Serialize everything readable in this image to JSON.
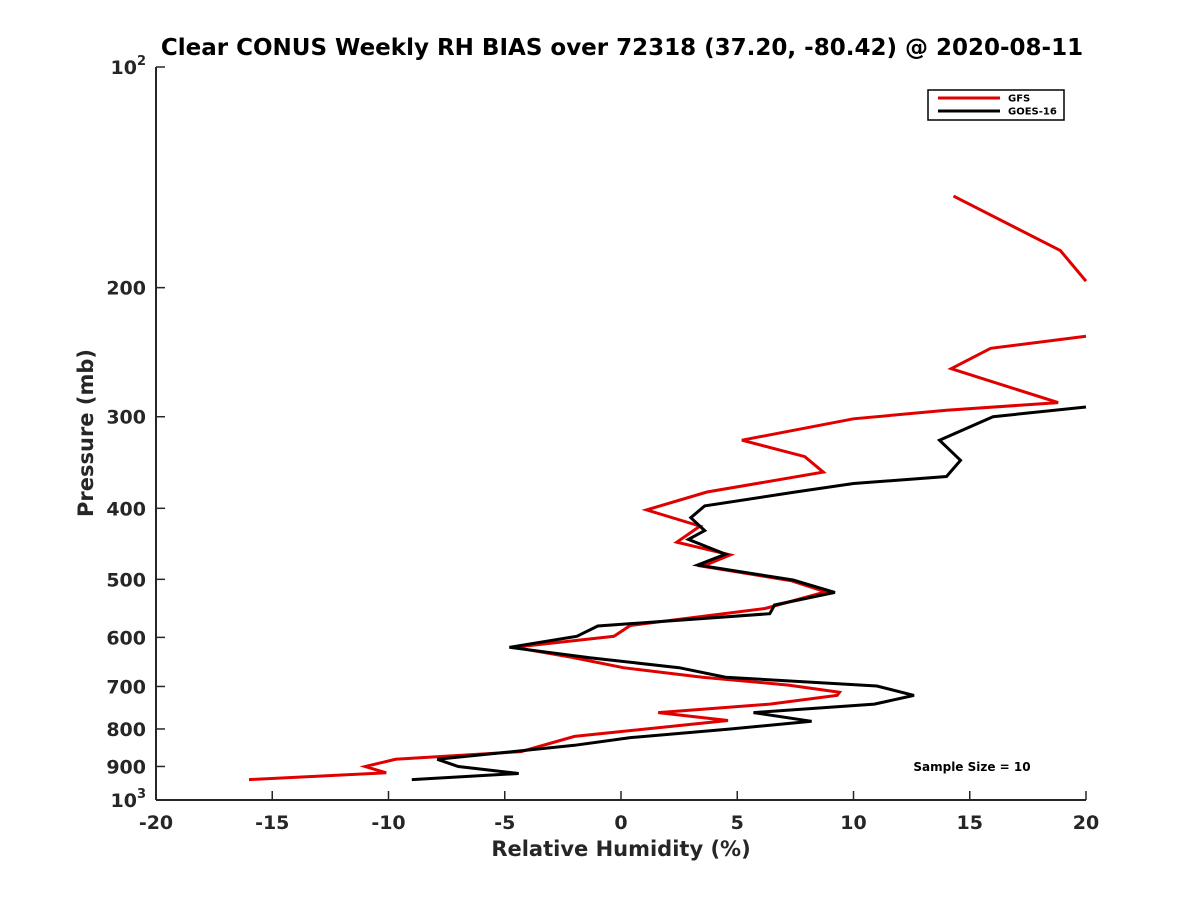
{
  "chart_data": {
    "type": "line",
    "title": "Clear CONUS Weekly RH BIAS over 72318 (37.20, -80.42) @ 2020-08-11",
    "xlabel": "Relative Humidity (%)",
    "ylabel": "Pressure (mb)",
    "xlim": [
      -20,
      20
    ],
    "ylim": [
      100,
      1000
    ],
    "y_scale": "log",
    "y_reversed": true,
    "grid": false,
    "legend_position": "top-right",
    "x_ticks": [
      "-20",
      "-15",
      "-10",
      "-5",
      "0",
      "5",
      "10",
      "15",
      "20"
    ],
    "y_ticks": [
      {
        "value": 100,
        "base": "10",
        "exp": "2"
      },
      {
        "value": 200,
        "label": "200"
      },
      {
        "value": 300,
        "label": "300"
      },
      {
        "value": 400,
        "label": "400"
      },
      {
        "value": 500,
        "label": "500"
      },
      {
        "value": 600,
        "label": "600"
      },
      {
        "value": 700,
        "label": "700"
      },
      {
        "value": 800,
        "label": "800"
      },
      {
        "value": 900,
        "label": "900"
      },
      {
        "value": 1000,
        "base": "10",
        "exp": "3"
      }
    ],
    "series": [
      {
        "name": "GFS",
        "color": "#e00000",
        "points": [
          [
            14.3,
            150
          ],
          [
            18.9,
            178
          ],
          [
            20.0,
            196
          ],
          null,
          [
            20.0,
            233
          ],
          [
            15.9,
            242
          ],
          [
            14.2,
            258
          ],
          [
            18.8,
            287
          ],
          [
            14.0,
            294
          ],
          [
            10.0,
            302
          ],
          [
            5.2,
            323
          ],
          [
            7.9,
            340
          ],
          [
            8.7,
            357
          ],
          [
            3.7,
            380
          ],
          [
            1.1,
            402
          ],
          [
            3.4,
            423
          ],
          [
            2.4,
            445
          ],
          [
            4.7,
            463
          ],
          [
            3.5,
            480
          ],
          [
            7.3,
            502
          ],
          [
            8.8,
            520
          ],
          [
            6.2,
            548
          ],
          [
            0.4,
            578
          ],
          [
            -0.3,
            598
          ],
          [
            -4.6,
            619
          ],
          [
            -2.1,
            639
          ],
          [
            0.1,
            660
          ],
          [
            3.5,
            680
          ],
          [
            7.2,
            697
          ],
          [
            9.4,
            713
          ],
          [
            9.3,
            720
          ],
          [
            6.4,
            740
          ],
          [
            1.6,
            760
          ],
          [
            4.6,
            779
          ],
          [
            -2.0,
            819
          ],
          [
            -4.3,
            859
          ],
          [
            -9.7,
            880
          ],
          [
            -11.0,
            900
          ],
          [
            -10.1,
            918
          ],
          [
            -16.0,
            938
          ]
        ]
      },
      {
        "name": "GOES-16",
        "color": "#000000",
        "points": [
          [
            20.0,
            291
          ],
          [
            16.0,
            300
          ],
          [
            13.7,
            323
          ],
          [
            14.6,
            344
          ],
          [
            14.0,
            362
          ],
          [
            10.0,
            370
          ],
          [
            7.5,
            380
          ],
          [
            3.6,
            397
          ],
          [
            3.0,
            412
          ],
          [
            3.6,
            429
          ],
          [
            2.9,
            441
          ],
          [
            4.5,
            462
          ],
          [
            3.3,
            478
          ],
          [
            7.4,
            501
          ],
          [
            9.2,
            521
          ],
          [
            6.6,
            542
          ],
          [
            6.4,
            557
          ],
          [
            -1.0,
            579
          ],
          [
            -1.9,
            598
          ],
          [
            -4.8,
            619
          ],
          [
            -1.3,
            640
          ],
          [
            2.5,
            660
          ],
          [
            4.5,
            680
          ],
          [
            11.0,
            699
          ],
          [
            12.6,
            720
          ],
          [
            10.9,
            740
          ],
          [
            5.7,
            760
          ],
          [
            8.2,
            781
          ],
          [
            4.7,
            800
          ],
          [
            0.4,
            822
          ],
          [
            -2.0,
            842
          ],
          [
            -7.9,
            880
          ],
          [
            -7.0,
            900
          ],
          [
            -4.4,
            920
          ],
          [
            -9.0,
            938
          ]
        ]
      }
    ],
    "annotation": "Sample Size = 10"
  }
}
